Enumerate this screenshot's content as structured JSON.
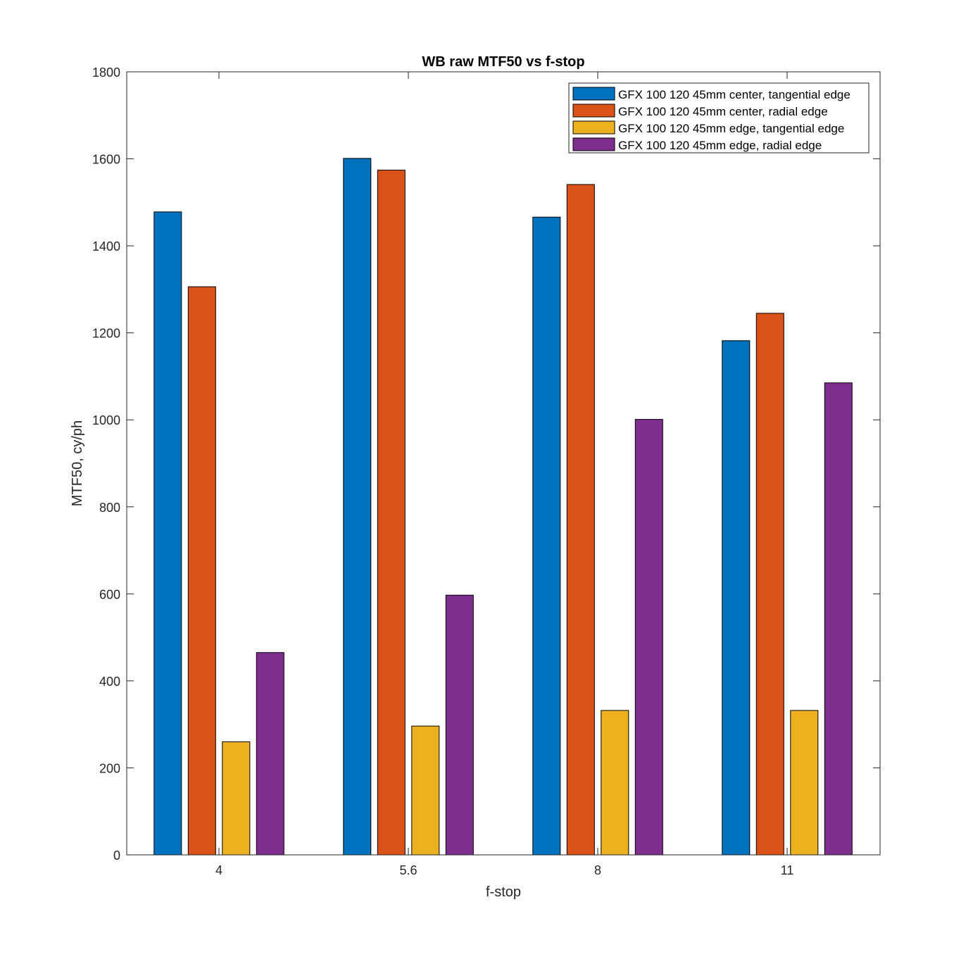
{
  "chart_data": {
    "type": "bar",
    "title": "WB raw MTF50 vs f-stop",
    "xlabel": "f-stop",
    "ylabel": "MTF50, cy/ph",
    "ylim": [
      0,
      1800
    ],
    "yticks": [
      0,
      200,
      400,
      600,
      800,
      1000,
      1200,
      1400,
      1600,
      1800
    ],
    "categories": [
      "4",
      "5.6",
      "8",
      "11"
    ],
    "grid": false,
    "legend_position": "top-right",
    "series": [
      {
        "name": "GFX 100 120 45mm center, tangential edge",
        "color": "#0072BD",
        "values": [
          1478,
          1601,
          1466,
          1182
        ]
      },
      {
        "name": "GFX 100 120 45mm center, radial edge",
        "color": "#D95319",
        "values": [
          1306,
          1574,
          1541,
          1245
        ]
      },
      {
        "name": "GFX 100 120 45mm edge, tangential edge",
        "color": "#EDB120",
        "values": [
          260,
          296,
          332,
          332
        ]
      },
      {
        "name": "GFX 100 120 45mm edge, radial edge",
        "color": "#7E2F8E",
        "values": [
          465,
          597,
          1001,
          1085
        ]
      }
    ]
  }
}
